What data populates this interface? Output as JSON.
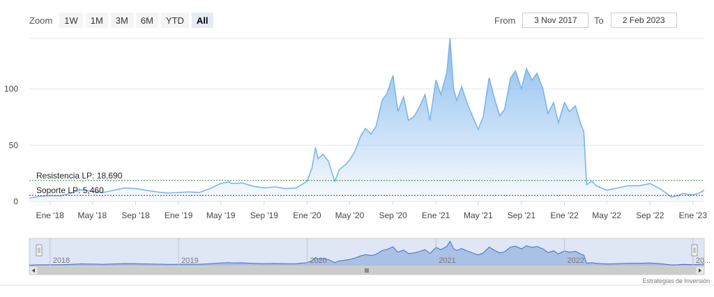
{
  "zoom": {
    "label": "Zoom",
    "buttons": [
      "1W",
      "1M",
      "3M",
      "6M",
      "YTD",
      "All"
    ],
    "active": "All"
  },
  "range": {
    "from_label": "From",
    "from_value": "3 Nov 2017",
    "to_label": "To",
    "to_value": "2 Feb 2023"
  },
  "credits": "Estrategias de Inversión",
  "colors": {
    "series_line": "#7cb5ec",
    "resistance_line": "#2e7d32",
    "support_line": "#8b1a1a",
    "navigator_mask": "#c5d2ec"
  },
  "chart_data": {
    "type": "area",
    "x_unit": "date",
    "y_ticks": [
      0,
      50,
      100
    ],
    "ylim": [
      0,
      145
    ],
    "x_tick_labels": [
      "Ene '18",
      "May '18",
      "Sep '18",
      "Ene '19",
      "May '19",
      "Sep '19",
      "Ene '20",
      "May '20",
      "Sep '20",
      "Ene '21",
      "May '21",
      "Sep '21",
      "Ene '22",
      "May '22",
      "Sep '22",
      "Ene '23"
    ],
    "x_tick_dates": [
      "2018-01-01",
      "2018-05-01",
      "2018-09-01",
      "2019-01-01",
      "2019-05-01",
      "2019-09-01",
      "2020-01-01",
      "2020-05-01",
      "2020-09-01",
      "2021-01-01",
      "2021-05-01",
      "2021-09-01",
      "2022-01-01",
      "2022-05-01",
      "2022-09-01",
      "2023-01-01"
    ],
    "reference_lines": [
      {
        "label": "Resistencia LP: 18,690",
        "value": 18.69
      },
      {
        "label": "Soporte LP: 5,460",
        "value": 5.46
      }
    ],
    "navigator_labels": [
      "2018",
      "2019",
      "2020",
      "2021",
      "2022",
      "20..."
    ],
    "navigator_label_dates": [
      "2018-01-01",
      "2019-01-01",
      "2020-01-01",
      "2021-01-01",
      "2022-01-01",
      "2023-01-01"
    ],
    "series": [
      {
        "points": [
          [
            "2017-11-03",
            2.8
          ],
          [
            "2017-12-01",
            4.5
          ],
          [
            "2018-01-01",
            5.2
          ],
          [
            "2018-02-01",
            5.0
          ],
          [
            "2018-03-01",
            7.5
          ],
          [
            "2018-04-01",
            10.5
          ],
          [
            "2018-05-01",
            9.0
          ],
          [
            "2018-06-01",
            8.0
          ],
          [
            "2018-07-01",
            10.0
          ],
          [
            "2018-08-01",
            12.0
          ],
          [
            "2018-09-01",
            11.5
          ],
          [
            "2018-10-01",
            10.0
          ],
          [
            "2018-11-01",
            8.5
          ],
          [
            "2018-12-01",
            7.5
          ],
          [
            "2019-01-01",
            8.0
          ],
          [
            "2019-02-01",
            8.5
          ],
          [
            "2019-03-01",
            8.0
          ],
          [
            "2019-04-01",
            11.5
          ],
          [
            "2019-05-01",
            16.0
          ],
          [
            "2019-05-25",
            17.5
          ],
          [
            "2019-06-01",
            16.0
          ],
          [
            "2019-07-01",
            16.5
          ],
          [
            "2019-08-01",
            13.5
          ],
          [
            "2019-09-01",
            12.0
          ],
          [
            "2019-10-01",
            13.0
          ],
          [
            "2019-11-01",
            11.5
          ],
          [
            "2019-12-01",
            12.0
          ],
          [
            "2020-01-01",
            18.0
          ],
          [
            "2020-01-15",
            30.0
          ],
          [
            "2020-01-25",
            48.0
          ],
          [
            "2020-02-01",
            38.0
          ],
          [
            "2020-02-15",
            42.0
          ],
          [
            "2020-03-01",
            36.0
          ],
          [
            "2020-03-20",
            18.0
          ],
          [
            "2020-04-01",
            28.0
          ],
          [
            "2020-04-20",
            33.0
          ],
          [
            "2020-05-01",
            37.0
          ],
          [
            "2020-05-15",
            44.0
          ],
          [
            "2020-06-01",
            58.0
          ],
          [
            "2020-06-15",
            65.0
          ],
          [
            "2020-07-01",
            60.0
          ],
          [
            "2020-07-15",
            67.0
          ],
          [
            "2020-08-01",
            90.0
          ],
          [
            "2020-08-15",
            96.0
          ],
          [
            "2020-09-01",
            112.0
          ],
          [
            "2020-09-15",
            80.0
          ],
          [
            "2020-10-01",
            93.0
          ],
          [
            "2020-10-15",
            72.0
          ],
          [
            "2020-11-01",
            76.0
          ],
          [
            "2020-11-15",
            84.0
          ],
          [
            "2020-12-01",
            95.0
          ],
          [
            "2020-12-15",
            72.0
          ],
          [
            "2021-01-01",
            108.0
          ],
          [
            "2021-01-15",
            95.0
          ],
          [
            "2021-02-01",
            115.0
          ],
          [
            "2021-02-10",
            145.0
          ],
          [
            "2021-02-20",
            100.0
          ],
          [
            "2021-03-01",
            90.0
          ],
          [
            "2021-03-15",
            102.0
          ],
          [
            "2021-04-01",
            86.0
          ],
          [
            "2021-05-01",
            64.0
          ],
          [
            "2021-05-15",
            75.0
          ],
          [
            "2021-06-01",
            110.0
          ],
          [
            "2021-06-15",
            93.0
          ],
          [
            "2021-07-01",
            76.0
          ],
          [
            "2021-07-15",
            82.0
          ],
          [
            "2021-08-01",
            110.0
          ],
          [
            "2021-08-15",
            116.0
          ],
          [
            "2021-09-01",
            100.0
          ],
          [
            "2021-09-15",
            118.0
          ],
          [
            "2021-10-01",
            108.0
          ],
          [
            "2021-10-15",
            114.0
          ],
          [
            "2021-11-01",
            100.0
          ],
          [
            "2021-11-15",
            78.0
          ],
          [
            "2021-12-01",
            88.0
          ],
          [
            "2021-12-15",
            70.0
          ],
          [
            "2022-01-01",
            88.0
          ],
          [
            "2022-01-15",
            80.0
          ],
          [
            "2022-02-01",
            85.0
          ],
          [
            "2022-02-15",
            70.0
          ],
          [
            "2022-02-25",
            62.0
          ],
          [
            "2022-03-05",
            15.0
          ],
          [
            "2022-03-20",
            18.0
          ],
          [
            "2022-04-01",
            14.0
          ],
          [
            "2022-05-01",
            10.0
          ],
          [
            "2022-06-01",
            12.0
          ],
          [
            "2022-07-01",
            14.0
          ],
          [
            "2022-08-01",
            14.0
          ],
          [
            "2022-09-01",
            16.0
          ],
          [
            "2022-10-01",
            11.0
          ],
          [
            "2022-11-01",
            4.0
          ],
          [
            "2022-11-20",
            5.0
          ],
          [
            "2022-12-01",
            7.0
          ],
          [
            "2023-01-01",
            6.0
          ],
          [
            "2023-01-15",
            7.0
          ],
          [
            "2023-02-02",
            10.0
          ]
        ]
      }
    ]
  }
}
